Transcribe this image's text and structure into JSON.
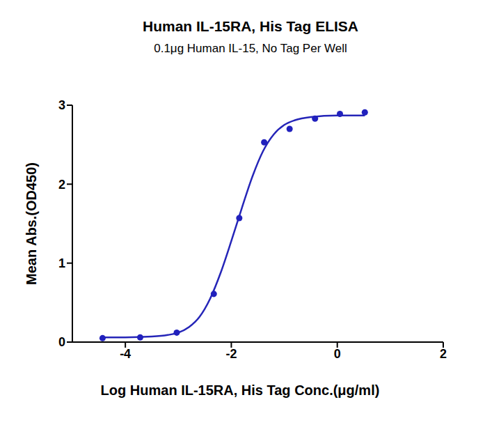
{
  "chart_data": {
    "type": "scatter",
    "title": "Human IL-15RA, His Tag ELISA",
    "subtitle": "0.1μg Human IL-15, No Tag Per Well",
    "x_label": "Log Human IL-15RA, His Tag Conc.(μg/ml)",
    "y_label": "Mean Abs.(OD450)",
    "xlim": [
      -5,
      2
    ],
    "xticks": [
      -4,
      -2,
      0,
      2
    ],
    "ylim": [
      0,
      3
    ],
    "yticks": [
      0,
      1,
      2,
      3
    ],
    "grid": false,
    "series": [
      {
        "type": "scatter",
        "marker": "circle",
        "color": "#2121bd",
        "x": [
          -4.43,
          -3.72,
          -3.03,
          -2.33,
          -1.85,
          -1.38,
          -0.9,
          -0.42,
          0.05,
          0.52
        ],
        "values": [
          0.05,
          0.06,
          0.12,
          0.61,
          1.57,
          2.53,
          2.7,
          2.83,
          2.89,
          2.91
        ]
      },
      {
        "type": "line",
        "line_style": "solid",
        "color": "#2525b8",
        "x": [
          -4.43,
          -4,
          -3.5,
          -3.2,
          -3,
          -2.8,
          -2.6,
          -2.4,
          -2.2,
          -2,
          -1.8,
          -1.6,
          -1.4,
          -1.2,
          -1,
          -0.8,
          -0.5,
          0,
          0.52
        ],
        "values": [
          0.06,
          0.06,
          0.07,
          0.09,
          0.12,
          0.19,
          0.32,
          0.55,
          0.88,
          1.28,
          1.7,
          2.1,
          2.42,
          2.63,
          2.75,
          2.81,
          2.85,
          2.87,
          2.87
        ]
      }
    ]
  }
}
